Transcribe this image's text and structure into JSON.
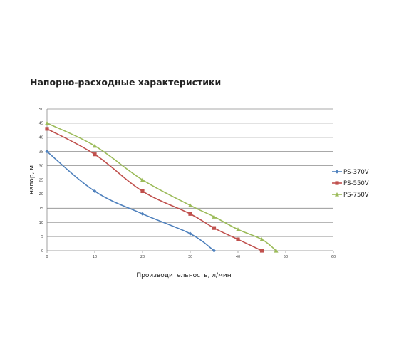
{
  "chart_data": {
    "type": "line",
    "title": "Напорно-расходные характеристики",
    "xlabel": "Производительность, л/мин",
    "ylabel": "напор, м",
    "xlim": [
      0,
      60
    ],
    "ylim": [
      0,
      50
    ],
    "xticks": [
      0,
      10,
      20,
      30,
      40,
      50,
      60
    ],
    "yticks": [
      0,
      5,
      10,
      15,
      20,
      25,
      30,
      35,
      40,
      45,
      50
    ],
    "grid": true,
    "legend_position": "right",
    "series": [
      {
        "name": "PS-370V",
        "color": "#4f81bd",
        "marker": "diamond",
        "points": [
          [
            0,
            35
          ],
          [
            10,
            21
          ],
          [
            20,
            13
          ],
          [
            30,
            6
          ],
          [
            35,
            0
          ]
        ]
      },
      {
        "name": "PS-550V",
        "color": "#c0504d",
        "marker": "square",
        "points": [
          [
            0,
            43
          ],
          [
            10,
            34
          ],
          [
            20,
            21
          ],
          [
            30,
            13
          ],
          [
            35,
            8
          ],
          [
            40,
            4
          ],
          [
            45,
            0
          ]
        ]
      },
      {
        "name": "PS-750V",
        "color": "#9bbb59",
        "marker": "triangle",
        "points": [
          [
            0,
            45
          ],
          [
            10,
            37
          ],
          [
            20,
            25
          ],
          [
            30,
            16
          ],
          [
            35,
            12
          ],
          [
            40,
            7.5
          ],
          [
            45,
            4
          ],
          [
            48,
            0
          ]
        ]
      }
    ]
  }
}
